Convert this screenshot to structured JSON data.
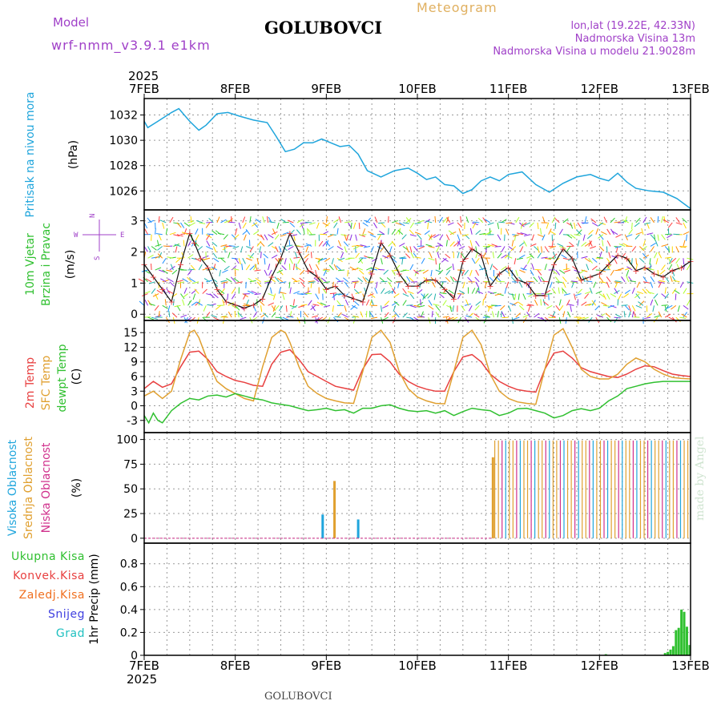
{
  "header": {
    "model_label": "Model",
    "model_name": "wrf-nmm_v3.9.1 e1km",
    "location": "GOLUBOVCI",
    "product": "Meteogram",
    "coords": "lon,lat (19.22E, 42.33N)",
    "altitude": "Nadmorska Visina 13m",
    "model_altitude": "Nadmorska Visina u modelu 21.9028m"
  },
  "footer": {
    "location": "GOLUBOVCI",
    "credit": "made by Angel"
  },
  "colors": {
    "pressure": "#1fa5dc",
    "wind_speed": "#111111",
    "temp2m": "#e84040",
    "sfc_temp": "#e0a030",
    "dewpoint": "#30c030",
    "cloud_high": "#1fa5dc",
    "cloud_mid": "#e0a030",
    "cloud_low": "#d0308c",
    "total_rain": "#30c030",
    "label_purple": "#a040c8"
  },
  "chart_data": [
    {
      "type": "line",
      "panel": "pressure",
      "ylabel_left": "Pritisak na nivou mora",
      "ylabel_unit": "(hPa)",
      "yticks": [
        1026,
        1028,
        1030,
        1032
      ],
      "ylim": [
        1024.5,
        1033.3
      ],
      "xlim_days": [
        0,
        6
      ],
      "grid": true,
      "top_year": "2025",
      "x_ticks": [
        "7FEB",
        "8FEB",
        "9FEB",
        "10FEB",
        "11FEB",
        "12FEB",
        "13FEB"
      ],
      "series": [
        {
          "name": "pressure",
          "x_days": [
            0,
            0.04,
            0.15,
            0.3,
            0.38,
            0.5,
            0.6,
            0.68,
            0.8,
            0.92,
            1.05,
            1.2,
            1.35,
            1.45,
            1.55,
            1.65,
            1.75,
            1.85,
            1.95,
            2.05,
            2.15,
            2.25,
            2.35,
            2.45,
            2.6,
            2.75,
            2.9,
            3.0,
            3.1,
            3.2,
            3.3,
            3.4,
            3.5,
            3.6,
            3.7,
            3.8,
            3.9,
            4.0,
            4.15,
            4.3,
            4.45,
            4.6,
            4.75,
            4.9,
            5.0,
            5.1,
            5.2,
            5.3,
            5.4,
            5.55,
            5.7,
            5.85,
            6.0
          ],
          "y": [
            1031.5,
            1031.0,
            1031.5,
            1032.2,
            1032.5,
            1031.5,
            1030.8,
            1031.2,
            1032.1,
            1032.2,
            1031.9,
            1031.6,
            1031.4,
            1030.3,
            1029.1,
            1029.3,
            1029.8,
            1029.8,
            1030.1,
            1029.8,
            1029.5,
            1029.6,
            1028.9,
            1027.6,
            1027.1,
            1027.6,
            1027.8,
            1027.4,
            1026.9,
            1027.1,
            1026.5,
            1026.4,
            1025.8,
            1026.1,
            1026.8,
            1027.1,
            1026.8,
            1027.3,
            1027.5,
            1026.5,
            1025.9,
            1026.6,
            1027.1,
            1027.3,
            1027.0,
            1026.8,
            1027.4,
            1026.7,
            1026.2,
            1026.0,
            1025.9,
            1025.4,
            1024.6
          ]
        }
      ]
    },
    {
      "type": "line",
      "panel": "wind",
      "ylabel_left": [
        "10m Vjetar",
        "Brzina i Pravac"
      ],
      "ylabel_unit": "(m/s)",
      "compass_labels": {
        "north": "N",
        "south": "S",
        "west": "W",
        "east": "E"
      },
      "yticks": [
        0,
        1,
        2,
        3
      ],
      "ylim": [
        -0.2,
        3.35
      ],
      "series": [
        {
          "name": "wind speed",
          "x_days": [
            0,
            0.1,
            0.2,
            0.3,
            0.4,
            0.5,
            0.55,
            0.62,
            0.7,
            0.8,
            0.9,
            1.0,
            1.1,
            1.2,
            1.3,
            1.4,
            1.5,
            1.6,
            1.7,
            1.8,
            1.9,
            2.0,
            2.1,
            2.2,
            2.3,
            2.4,
            2.5,
            2.6,
            2.7,
            2.8,
            2.9,
            3.0,
            3.1,
            3.2,
            3.3,
            3.4,
            3.5,
            3.6,
            3.7,
            3.8,
            3.9,
            4.0,
            4.1,
            4.2,
            4.3,
            4.4,
            4.5,
            4.6,
            4.7,
            4.8,
            4.9,
            5.0,
            5.1,
            5.2,
            5.3,
            5.4,
            5.5,
            5.6,
            5.7,
            5.8,
            5.9,
            6.0
          ],
          "y": [
            1.6,
            1.2,
            0.8,
            0.4,
            1.6,
            2.6,
            2.3,
            1.8,
            1.5,
            0.8,
            0.4,
            0.3,
            0.2,
            0.3,
            0.5,
            1.2,
            1.8,
            2.6,
            2.0,
            1.4,
            1.2,
            0.8,
            0.9,
            0.6,
            0.5,
            0.4,
            1.3,
            2.3,
            1.9,
            1.3,
            0.9,
            0.9,
            1.1,
            1.1,
            0.8,
            0.5,
            1.7,
            2.1,
            1.9,
            0.9,
            1.3,
            1.5,
            1.1,
            1.0,
            0.6,
            0.6,
            1.6,
            2.1,
            1.8,
            1.1,
            1.2,
            1.3,
            1.6,
            1.9,
            1.8,
            1.4,
            1.5,
            1.3,
            1.2,
            1.4,
            1.5,
            1.7
          ]
        }
      ]
    },
    {
      "type": "line",
      "panel": "temperature",
      "ylabel_left": [
        "2m Temp",
        "SFC Temp",
        "dewpt Temp"
      ],
      "ylabel_unit": "(C)",
      "yticks": [
        -3,
        0,
        3,
        6,
        9,
        12,
        15
      ],
      "ylim": [
        -5.5,
        17.5
      ],
      "series": [
        {
          "name": "2m Temp",
          "x_days": [
            0,
            0.1,
            0.2,
            0.3,
            0.4,
            0.5,
            0.6,
            0.7,
            0.8,
            0.9,
            1.0,
            1.1,
            1.2,
            1.3,
            1.4,
            1.5,
            1.6,
            1.7,
            1.8,
            1.9,
            2.0,
            2.1,
            2.2,
            2.3,
            2.4,
            2.5,
            2.6,
            2.7,
            2.8,
            2.9,
            3.0,
            3.1,
            3.2,
            3.3,
            3.4,
            3.5,
            3.6,
            3.7,
            3.8,
            3.9,
            4.0,
            4.1,
            4.2,
            4.3,
            4.4,
            4.5,
            4.6,
            4.7,
            4.8,
            4.9,
            5.0,
            5.1,
            5.2,
            5.3,
            5.4,
            5.5,
            5.6,
            5.7,
            5.8,
            5.9,
            6.0
          ],
          "y": [
            3.5,
            5.0,
            3.8,
            4.5,
            8.0,
            11.0,
            11.2,
            9.5,
            7.0,
            6.0,
            5.2,
            4.8,
            4.2,
            4.0,
            8.5,
            11.0,
            11.5,
            9.5,
            7.0,
            6.0,
            5.0,
            4.0,
            3.6,
            3.2,
            7.5,
            10.5,
            10.6,
            9.0,
            6.5,
            5.0,
            4.0,
            3.4,
            3.0,
            3.0,
            7.0,
            10.0,
            10.5,
            9.0,
            6.5,
            5.0,
            4.0,
            3.3,
            3.0,
            2.8,
            7.5,
            10.8,
            11.2,
            9.8,
            7.8,
            7.0,
            6.5,
            6.0,
            5.8,
            6.5,
            7.5,
            8.2,
            8.0,
            7.2,
            6.5,
            6.2,
            6.0
          ]
        },
        {
          "name": "SFC Temp",
          "x_days": [
            0,
            0.1,
            0.2,
            0.3,
            0.4,
            0.5,
            0.55,
            0.6,
            0.7,
            0.8,
            0.9,
            1.0,
            1.1,
            1.2,
            1.3,
            1.4,
            1.5,
            1.55,
            1.6,
            1.7,
            1.8,
            1.9,
            2.0,
            2.1,
            2.2,
            2.3,
            2.4,
            2.5,
            2.6,
            2.7,
            2.8,
            2.9,
            3.0,
            3.1,
            3.2,
            3.3,
            3.4,
            3.5,
            3.6,
            3.7,
            3.8,
            3.9,
            4.0,
            4.1,
            4.2,
            4.3,
            4.4,
            4.5,
            4.6,
            4.7,
            4.8,
            4.9,
            5.0,
            5.1,
            5.2,
            5.3,
            5.4,
            5.5,
            5.6,
            5.7,
            5.8,
            5.9,
            6.0
          ],
          "y": [
            2.0,
            3.0,
            1.5,
            3.0,
            9.5,
            15.0,
            15.5,
            14.0,
            9.0,
            5.0,
            3.5,
            2.5,
            1.5,
            1.0,
            8.0,
            14.0,
            15.5,
            15.0,
            13.0,
            8.0,
            4.0,
            2.5,
            1.5,
            1.0,
            0.6,
            0.5,
            7.0,
            14.0,
            15.5,
            13.0,
            7.0,
            3.5,
            1.8,
            1.0,
            0.5,
            0.4,
            7.0,
            14.0,
            15.5,
            12.5,
            6.5,
            3.0,
            1.5,
            0.8,
            0.5,
            0.3,
            7.5,
            14.5,
            15.8,
            12.0,
            7.5,
            6.0,
            5.5,
            5.5,
            6.5,
            8.5,
            9.8,
            9.0,
            7.5,
            6.5,
            5.8,
            5.6,
            5.5
          ]
        },
        {
          "name": "dewpt Temp",
          "x_days": [
            0,
            0.05,
            0.1,
            0.15,
            0.2,
            0.3,
            0.4,
            0.5,
            0.6,
            0.7,
            0.8,
            0.9,
            1.0,
            1.1,
            1.2,
            1.3,
            1.4,
            1.5,
            1.6,
            1.7,
            1.8,
            1.9,
            2.0,
            2.1,
            2.2,
            2.3,
            2.4,
            2.5,
            2.6,
            2.7,
            2.8,
            2.9,
            3.0,
            3.1,
            3.2,
            3.3,
            3.4,
            3.5,
            3.6,
            3.7,
            3.8,
            3.9,
            4.0,
            4.1,
            4.2,
            4.3,
            4.4,
            4.5,
            4.6,
            4.7,
            4.8,
            4.9,
            5.0,
            5.1,
            5.2,
            5.3,
            5.4,
            5.5,
            5.6,
            5.7,
            5.8,
            5.9,
            6.0
          ],
          "y": [
            -2.0,
            -3.5,
            -1.5,
            -3.0,
            -3.5,
            -1.0,
            0.5,
            1.5,
            1.2,
            2.0,
            2.2,
            1.8,
            2.5,
            2.0,
            1.5,
            1.2,
            0.6,
            0.3,
            0.0,
            -0.5,
            -1.0,
            -0.8,
            -0.5,
            -1.0,
            -0.8,
            -1.5,
            -0.5,
            -0.5,
            0.0,
            0.2,
            -0.5,
            -1.0,
            -1.2,
            -1.0,
            -1.5,
            -1.0,
            -2.0,
            -1.2,
            -0.5,
            -0.8,
            -1.0,
            -2.0,
            -1.5,
            -0.6,
            -0.5,
            -1.0,
            -1.5,
            -2.5,
            -2.0,
            -1.0,
            -0.6,
            -1.0,
            -0.5,
            1.0,
            2.0,
            3.5,
            4.0,
            4.5,
            4.8,
            5.0,
            5.0,
            5.0,
            5.0
          ]
        }
      ]
    },
    {
      "type": "bar",
      "panel": "cloud",
      "ylabel_left": [
        "Visoka Oblacnost",
        "Srednja Oblacnost",
        "Niska Oblacnost"
      ],
      "ylabel_unit": "(%)",
      "yticks": [
        0,
        25,
        50,
        75,
        100
      ],
      "ylim": [
        -5,
        107
      ],
      "bars": [
        {
          "series": "Visoka Oblacnost",
          "x_days": [
            1.96,
            2.35
          ],
          "values": [
            24,
            19
          ]
        },
        {
          "series": "Srednja Oblacnost",
          "x_days": [
            2.09
          ],
          "values": [
            58
          ]
        },
        {
          "series": "Srednja Oblacnost",
          "x_days": [
            3.83
          ],
          "values": [
            82
          ]
        }
      ],
      "dense_overcast_start_day": 3.85,
      "dense_overcast_value": 99
    },
    {
      "type": "bar",
      "panel": "precip",
      "ylabel_left": [
        "Ukupna Kisa",
        "Konvek.Kisa",
        "Zaledj.Kisa",
        "Snijeg",
        "Grad"
      ],
      "ylabel_unit": "1hr Precip (mm)",
      "yticks": [
        0,
        0.2,
        0.4,
        0.6,
        0.8
      ],
      "ylim": [
        0,
        0.98
      ],
      "bottom_year": "2025",
      "series": [
        {
          "name": "Ukupna Kisa",
          "x_days": [
            5.07,
            5.72,
            5.75,
            5.78,
            5.81,
            5.84,
            5.87,
            5.9,
            5.93,
            5.96,
            5.99
          ],
          "values": [
            0.01,
            0.02,
            0.03,
            0.05,
            0.08,
            0.22,
            0.24,
            0.4,
            0.38,
            0.25,
            0.09
          ]
        }
      ]
    }
  ]
}
